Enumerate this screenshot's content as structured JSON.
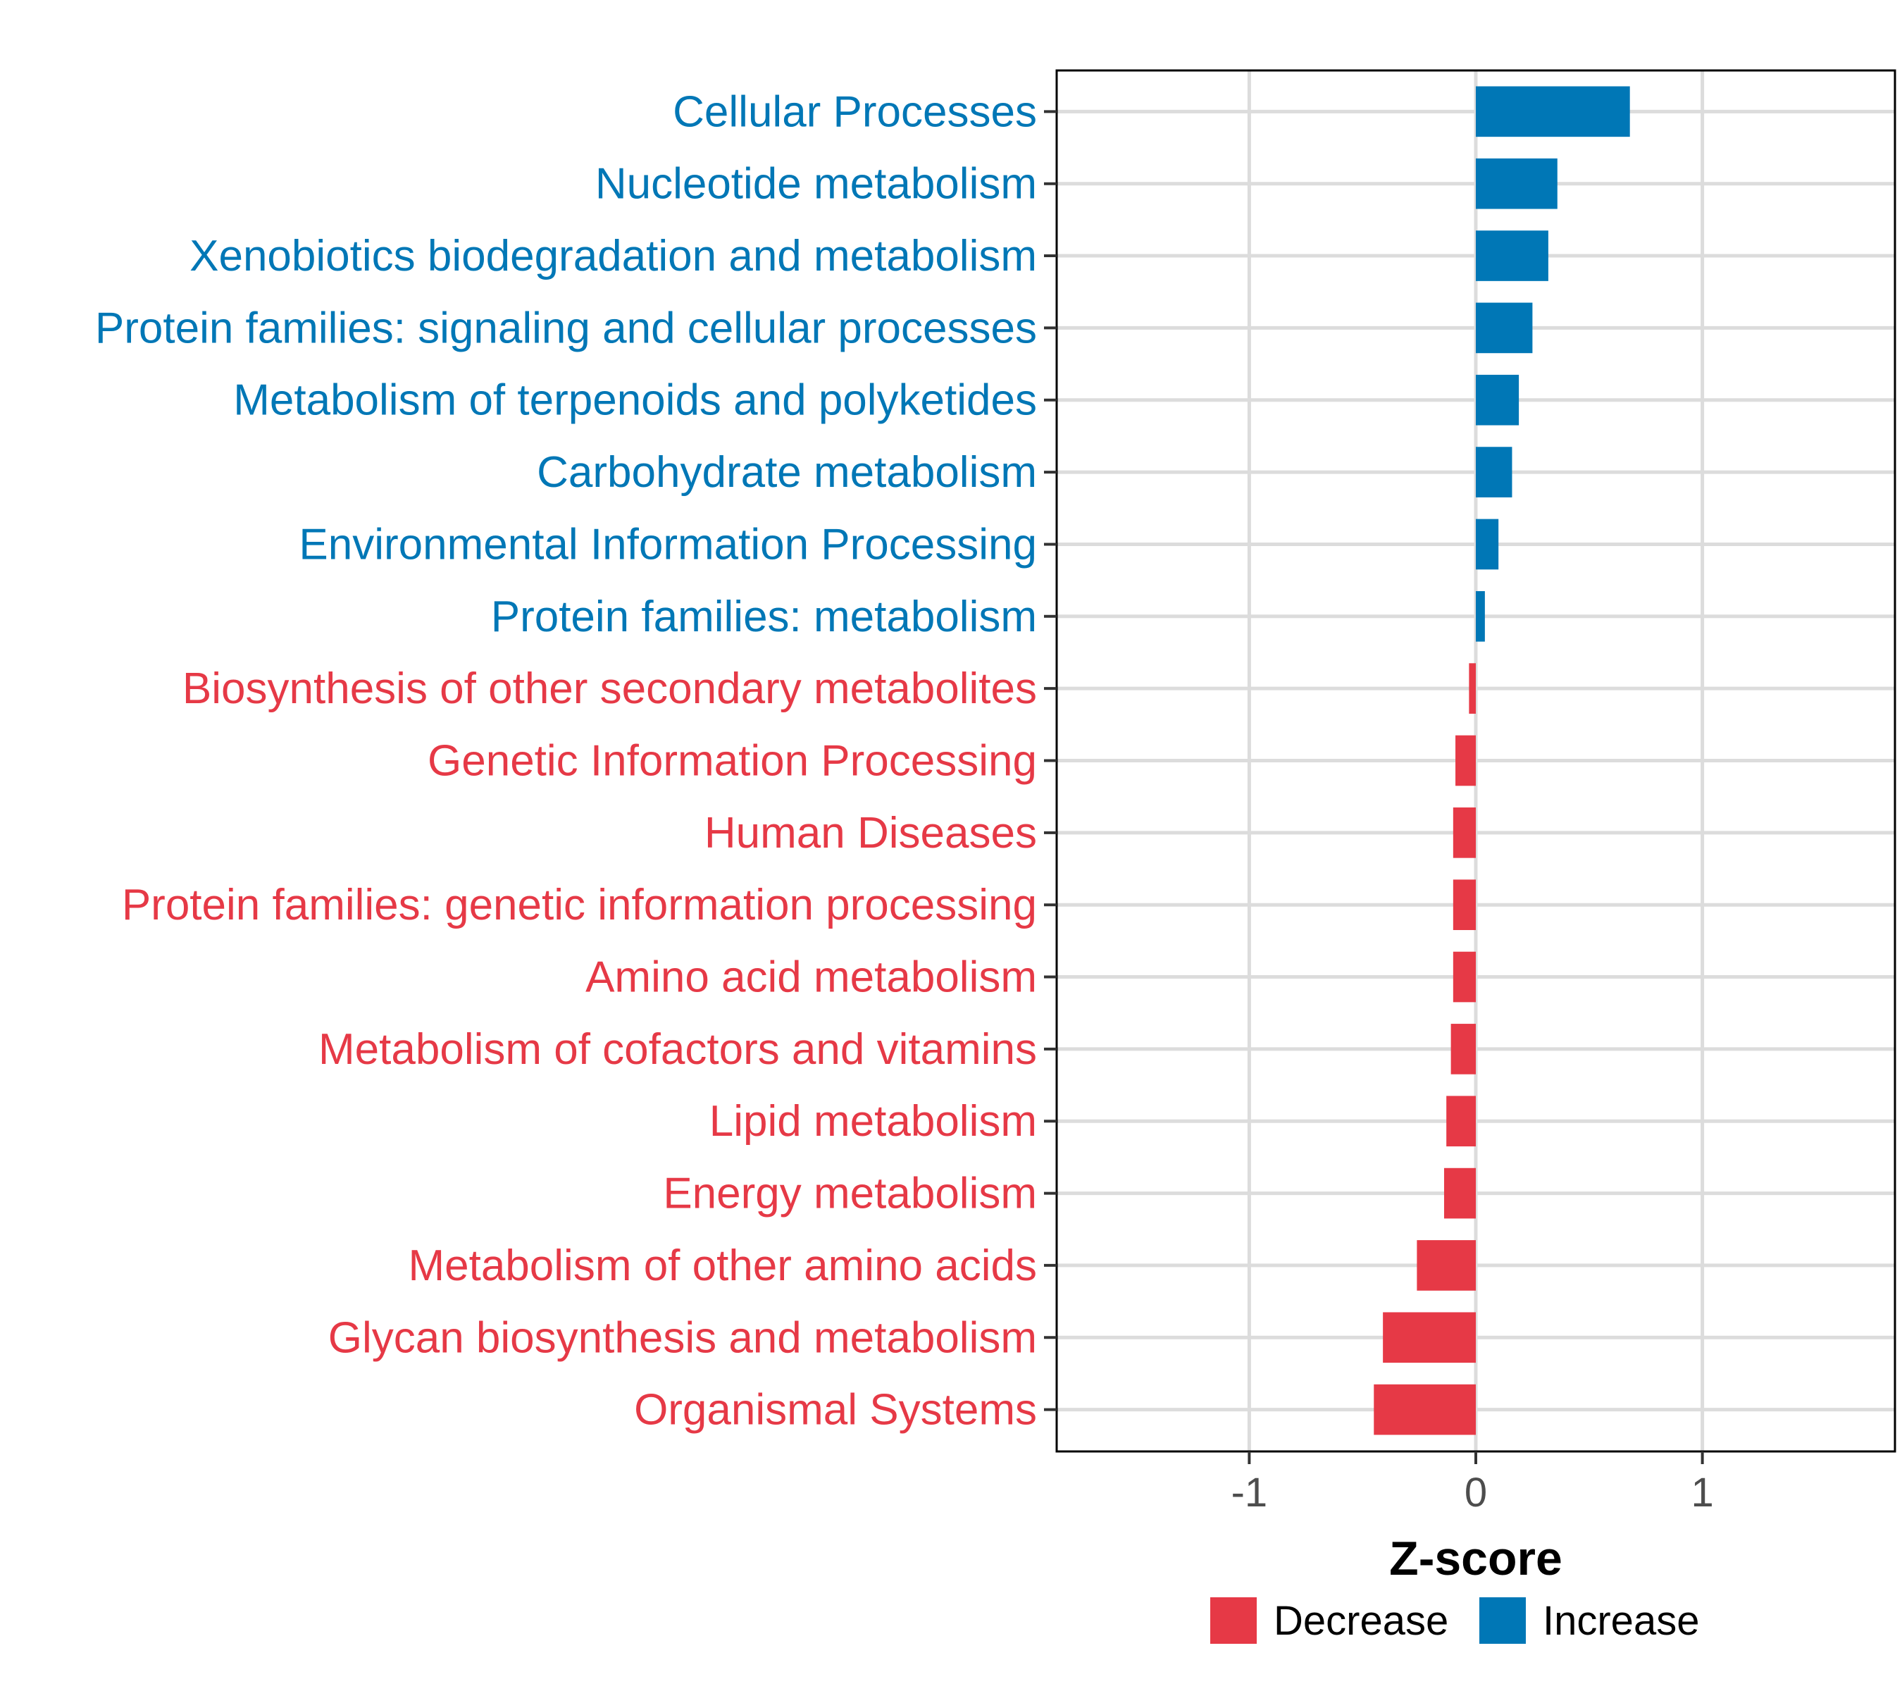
{
  "chart_data": {
    "type": "bar",
    "orientation": "horizontal",
    "xlabel": "Z-score",
    "ylabel": "",
    "xlim": [
      -1.85,
      1.85
    ],
    "x_ticks": [
      {
        "value": -1,
        "label": "-1"
      },
      {
        "value": 0,
        "label": "0"
      },
      {
        "value": 1,
        "label": "1"
      }
    ],
    "grid": true,
    "legend_position": "bottom",
    "legend": [
      {
        "name": "Decrease",
        "color": "#e63946"
      },
      {
        "name": "Increase",
        "color": "#0077b6"
      }
    ],
    "categories": [
      {
        "label": "Cellular Processes",
        "value": 0.68,
        "group": "Increase"
      },
      {
        "label": "Nucleotide metabolism",
        "value": 0.36,
        "group": "Increase"
      },
      {
        "label": "Xenobiotics biodegradation and metabolism",
        "value": 0.32,
        "group": "Increase"
      },
      {
        "label": "Protein families: signaling and cellular processes",
        "value": 0.25,
        "group": "Increase"
      },
      {
        "label": "Metabolism of terpenoids and polyketides",
        "value": 0.19,
        "group": "Increase"
      },
      {
        "label": "Carbohydrate metabolism",
        "value": 0.16,
        "group": "Increase"
      },
      {
        "label": "Environmental Information Processing",
        "value": 0.1,
        "group": "Increase"
      },
      {
        "label": "Protein families: metabolism",
        "value": 0.04,
        "group": "Increase"
      },
      {
        "label": "Biosynthesis of other secondary metabolites",
        "value": -0.03,
        "group": "Decrease"
      },
      {
        "label": "Genetic Information Processing",
        "value": -0.09,
        "group": "Decrease"
      },
      {
        "label": "Human Diseases",
        "value": -0.1,
        "group": "Decrease"
      },
      {
        "label": "Protein families: genetic information processing",
        "value": -0.1,
        "group": "Decrease"
      },
      {
        "label": "Amino acid metabolism",
        "value": -0.1,
        "group": "Decrease"
      },
      {
        "label": "Metabolism of cofactors and vitamins",
        "value": -0.11,
        "group": "Decrease"
      },
      {
        "label": "Lipid metabolism",
        "value": -0.13,
        "group": "Decrease"
      },
      {
        "label": "Energy metabolism",
        "value": -0.14,
        "group": "Decrease"
      },
      {
        "label": "Metabolism of other amino acids",
        "value": -0.26,
        "group": "Decrease"
      },
      {
        "label": "Glycan biosynthesis and metabolism",
        "value": -0.41,
        "group": "Decrease"
      },
      {
        "label": "Organismal Systems",
        "value": -0.45,
        "group": "Decrease"
      }
    ]
  }
}
